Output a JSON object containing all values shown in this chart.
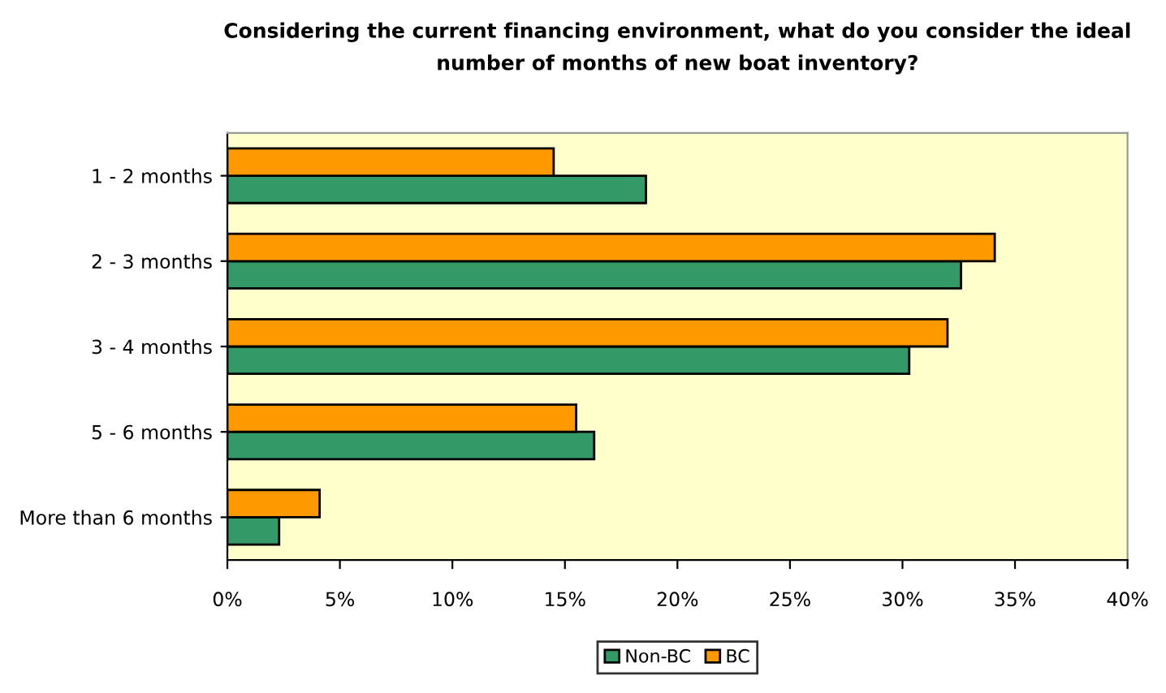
{
  "chart_data": {
    "type": "bar",
    "orientation": "horizontal",
    "title": "Considering the current financing environment, what do you consider the ideal\nnumber of months of new boat inventory?",
    "categories": [
      "1 - 2 months",
      "2 - 3 months",
      "3 - 4 months",
      "5 - 6 months",
      "More than 6 months"
    ],
    "series": [
      {
        "name": "Non-BC",
        "color": "#339966",
        "values": [
          18.6,
          32.6,
          30.3,
          16.3,
          2.3
        ]
      },
      {
        "name": "BC",
        "color": "#ff9900",
        "values": [
          14.5,
          34.1,
          32.0,
          15.5,
          4.1
        ]
      }
    ],
    "xlim": [
      0,
      40
    ],
    "xticks": [
      {
        "value": 0,
        "label": "0%"
      },
      {
        "value": 5,
        "label": "5%"
      },
      {
        "value": 10,
        "label": "10%"
      },
      {
        "value": 15,
        "label": "15%"
      },
      {
        "value": 20,
        "label": "20%"
      },
      {
        "value": 25,
        "label": "25%"
      },
      {
        "value": 30,
        "label": "30%"
      },
      {
        "value": 35,
        "label": "35%"
      },
      {
        "value": 40,
        "label": "40%"
      }
    ],
    "grid": false,
    "legend": "bottom"
  }
}
